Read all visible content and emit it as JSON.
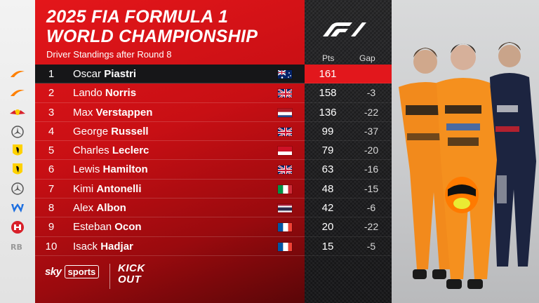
{
  "header": {
    "title_line1": "2025 FIA FORMULA 1",
    "title_line2": "WORLD CHAMPIONSHIP",
    "subtitle": "Driver Standings after Round 8"
  },
  "columns": {
    "points": "Pts",
    "gap": "Gap"
  },
  "standings": [
    {
      "pos": "1",
      "first": "Oscar",
      "last": "Piastri",
      "team": "mclaren",
      "flag": "australia",
      "pts": "161",
      "gap": ""
    },
    {
      "pos": "2",
      "first": "Lando",
      "last": "Norris",
      "team": "mclaren",
      "flag": "uk",
      "pts": "158",
      "gap": "-3"
    },
    {
      "pos": "3",
      "first": "Max",
      "last": "Verstappen",
      "team": "redbull",
      "flag": "netherlands",
      "pts": "136",
      "gap": "-22"
    },
    {
      "pos": "4",
      "first": "George",
      "last": "Russell",
      "team": "mercedes",
      "flag": "uk",
      "pts": "99",
      "gap": "-37"
    },
    {
      "pos": "5",
      "first": "Charles",
      "last": "Leclerc",
      "team": "ferrari",
      "flag": "monaco",
      "pts": "79",
      "gap": "-20"
    },
    {
      "pos": "6",
      "first": "Lewis",
      "last": "Hamilton",
      "team": "ferrari",
      "flag": "uk",
      "pts": "63",
      "gap": "-16"
    },
    {
      "pos": "7",
      "first": "Kimi",
      "last": "Antonelli",
      "team": "mercedes",
      "flag": "italy",
      "pts": "48",
      "gap": "-15"
    },
    {
      "pos": "8",
      "first": "Alex",
      "last": "Albon",
      "team": "williams",
      "flag": "thailand",
      "pts": "42",
      "gap": "-6"
    },
    {
      "pos": "9",
      "first": "Esteban",
      "last": "Ocon",
      "team": "haas",
      "flag": "france",
      "pts": "20",
      "gap": "-22"
    },
    {
      "pos": "10",
      "first": "Isack",
      "last": "Hadjar",
      "team": "racingbulls",
      "flag": "france",
      "pts": "15",
      "gap": "-5"
    }
  ],
  "footer": {
    "sky": "sky",
    "sports": "sports",
    "kickout_line1": "KICK",
    "kickout_line2": "OUT"
  },
  "colors": {
    "accent_red": "#e2171c",
    "mclaren_orange": "#ff8000",
    "leader_row": "#161618"
  }
}
